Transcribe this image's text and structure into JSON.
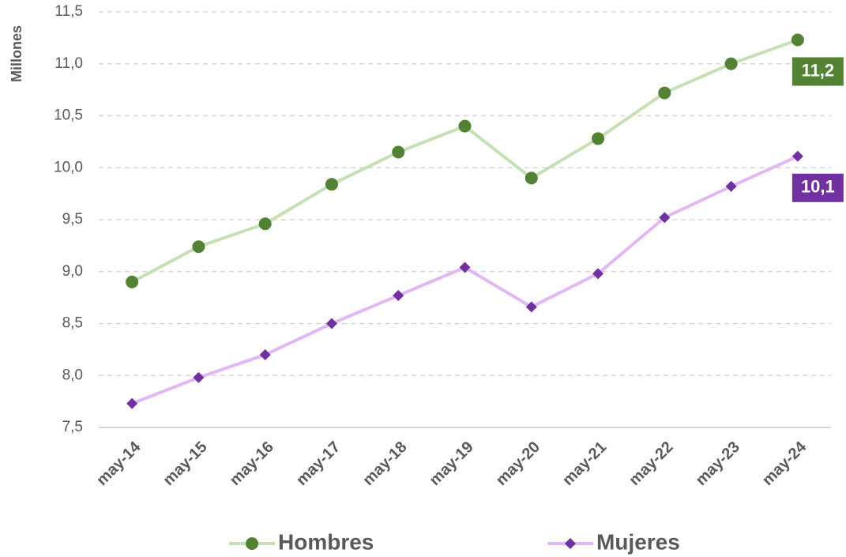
{
  "chart_data": {
    "type": "line",
    "y_axis_label": "Millones",
    "categories": [
      "may-14",
      "may-15",
      "may-16",
      "may-17",
      "may-18",
      "may-19",
      "may-20",
      "may-21",
      "may-22",
      "may-23",
      "may-24"
    ],
    "series": [
      {
        "name": "Hombres",
        "color": "#c5e0b4",
        "marker_color": "#548235",
        "marker": "circle",
        "values": [
          8.9,
          9.24,
          9.46,
          9.84,
          10.15,
          10.4,
          9.9,
          10.28,
          10.72,
          11.0,
          11.23
        ],
        "value_labels": [
          null,
          null,
          null,
          null,
          null,
          null,
          null,
          null,
          null,
          null,
          "11,2"
        ]
      },
      {
        "name": "Mujeres",
        "color": "#e1b8f5",
        "marker_color": "#7030a0",
        "marker": "diamond",
        "values": [
          7.73,
          7.98,
          8.2,
          8.5,
          8.77,
          9.04,
          8.66,
          8.98,
          9.52,
          9.82,
          10.11
        ],
        "value_labels": [
          null,
          null,
          null,
          null,
          null,
          null,
          null,
          null,
          null,
          null,
          "10,1"
        ]
      }
    ],
    "ylim": [
      7.5,
      11.5
    ],
    "yticks": [
      {
        "value": 7.5,
        "label": "7,5"
      },
      {
        "value": 8,
        "label": "8,0"
      },
      {
        "value": 8.5,
        "label": "8,5"
      },
      {
        "value": 9,
        "label": "9,0"
      },
      {
        "value": 9.5,
        "label": "9,5"
      },
      {
        "value": 10,
        "label": "10,0"
      },
      {
        "value": 10.5,
        "label": "10,5"
      },
      {
        "value": 11,
        "label": "11,0"
      },
      {
        "value": 11.5,
        "label": "11,5"
      }
    ],
    "grid": true,
    "legend": "bottom"
  }
}
